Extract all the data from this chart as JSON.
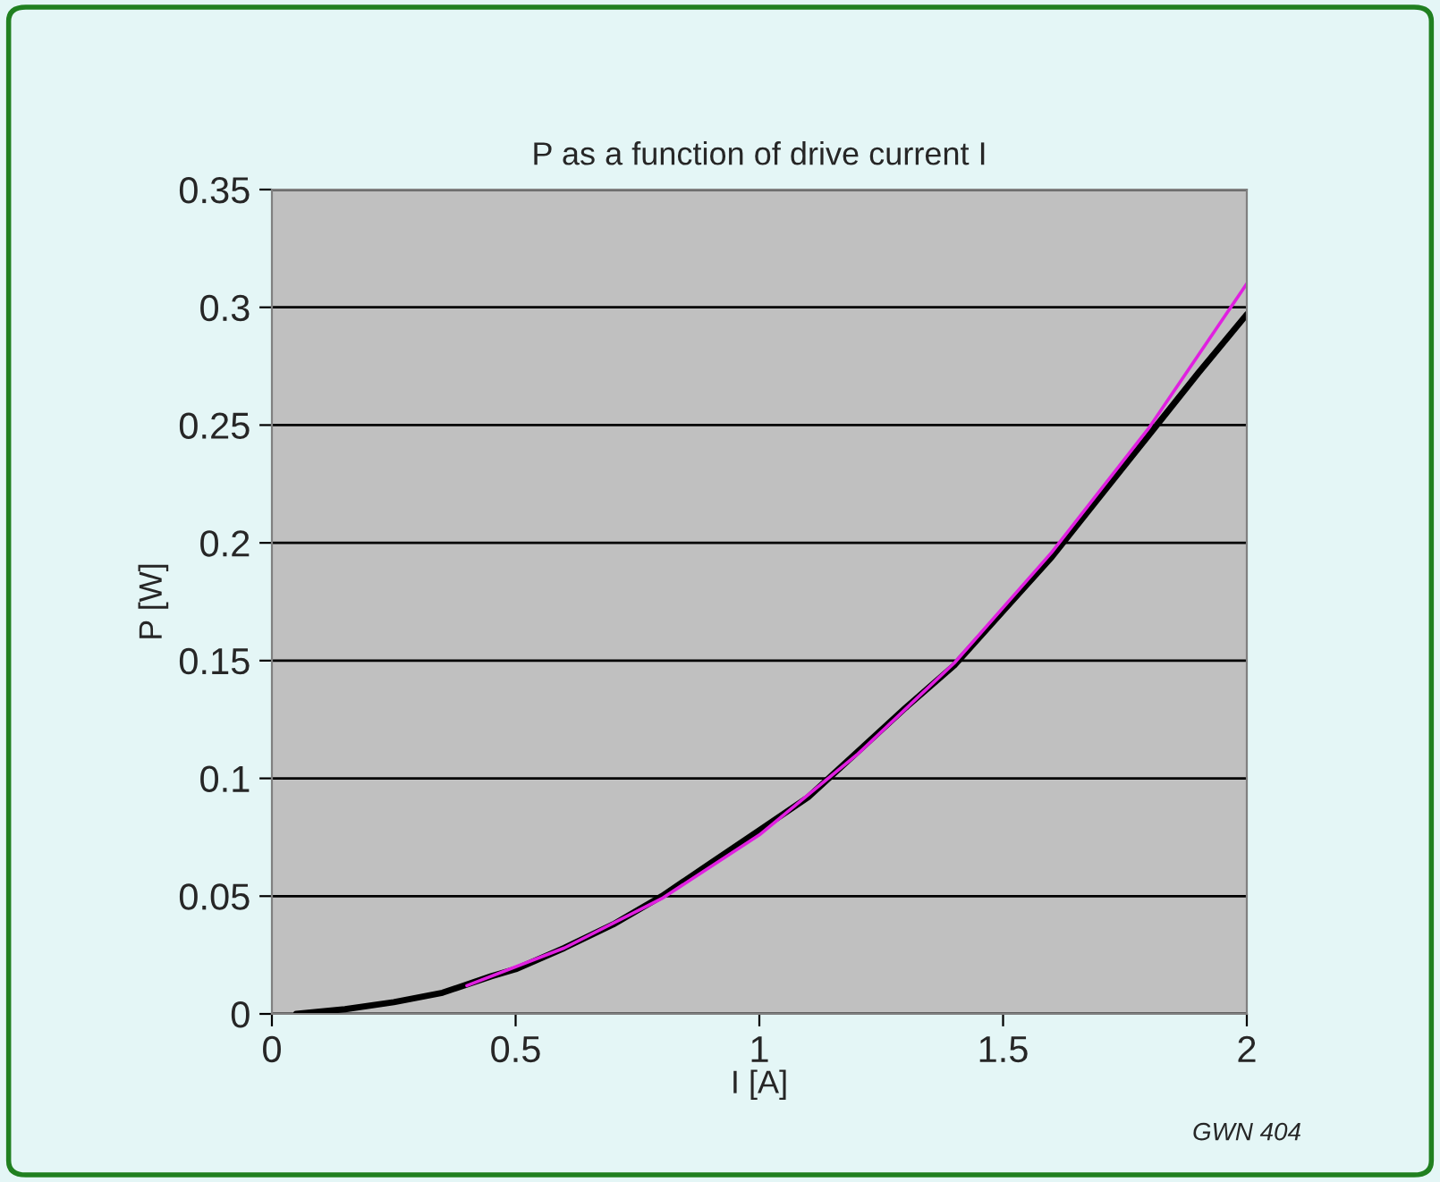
{
  "chart_data": {
    "type": "line",
    "title": "P as a function of drive current I",
    "xlabel": "I [A]",
    "ylabel": "P [W]",
    "annotations": [
      "GWN 404"
    ],
    "series": [
      {
        "color": "#000000",
        "x": [
          0.05,
          0.15,
          0.25,
          0.35,
          0.45,
          0.5,
          0.6,
          0.7,
          0.8,
          0.9,
          1.0,
          1.1,
          1.2,
          1.3,
          1.4,
          1.5,
          1.6,
          1.7,
          1.8,
          1.9,
          2.0
        ],
        "values": [
          0,
          0.002,
          0.005,
          0.009,
          0.016,
          0.019,
          0.028,
          0.038,
          0.05,
          0.064,
          0.078,
          0.092,
          0.111,
          0.13,
          0.148,
          0.171,
          0.194,
          0.22,
          0.246,
          0.272,
          0.297
        ]
      },
      {
        "color": "#e020e0",
        "x": [
          0.4,
          0.6,
          0.8,
          1.0,
          1.2,
          1.4,
          1.6,
          1.8,
          2.0
        ],
        "values": [
          0.012,
          0.028,
          0.049,
          0.076,
          0.11,
          0.149,
          0.196,
          0.249,
          0.31
        ]
      }
    ],
    "xlim": [
      0,
      2
    ],
    "ylim": [
      0,
      0.35
    ],
    "xticks": [
      0,
      0.5,
      1,
      1.5,
      2
    ],
    "yticks": [
      0,
      0.05,
      0.1,
      0.15,
      0.2,
      0.25,
      0.3,
      0.35
    ],
    "grid": "y",
    "legend": false,
    "marker": "none",
    "line_style": "solid"
  }
}
